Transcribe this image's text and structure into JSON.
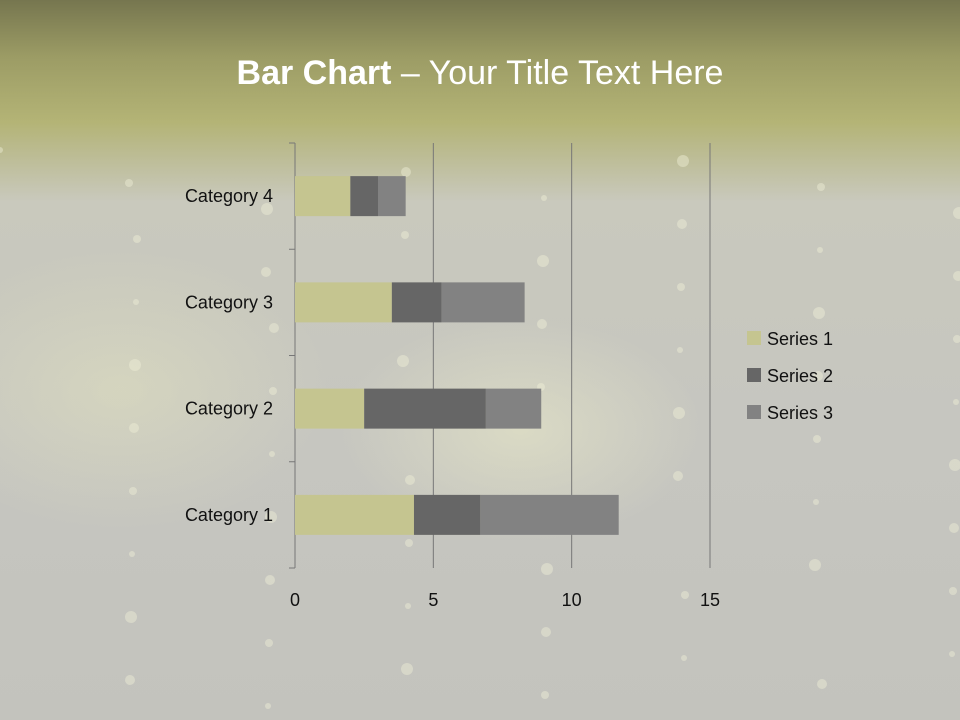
{
  "title": {
    "bold": "Bar Chart",
    "rest": " – Your Title Text Here"
  },
  "chart_data": {
    "type": "bar",
    "orientation": "horizontal",
    "stacked": true,
    "categories": [
      "Category 1",
      "Category 2",
      "Category 3",
      "Category 4"
    ],
    "series": [
      {
        "name": "Series 1",
        "values": [
          4.3,
          2.5,
          3.5,
          2
        ],
        "color": "#c5c590"
      },
      {
        "name": "Series 2",
        "values": [
          2.4,
          4.4,
          1.8,
          1
        ],
        "color": "#666666"
      },
      {
        "name": "Series 3",
        "values": [
          5,
          2,
          3,
          1
        ],
        "color": "#828282"
      }
    ],
    "xlim": [
      0,
      15
    ],
    "xticks": [
      0,
      5,
      10,
      15
    ],
    "grid": true,
    "legend": "right"
  }
}
